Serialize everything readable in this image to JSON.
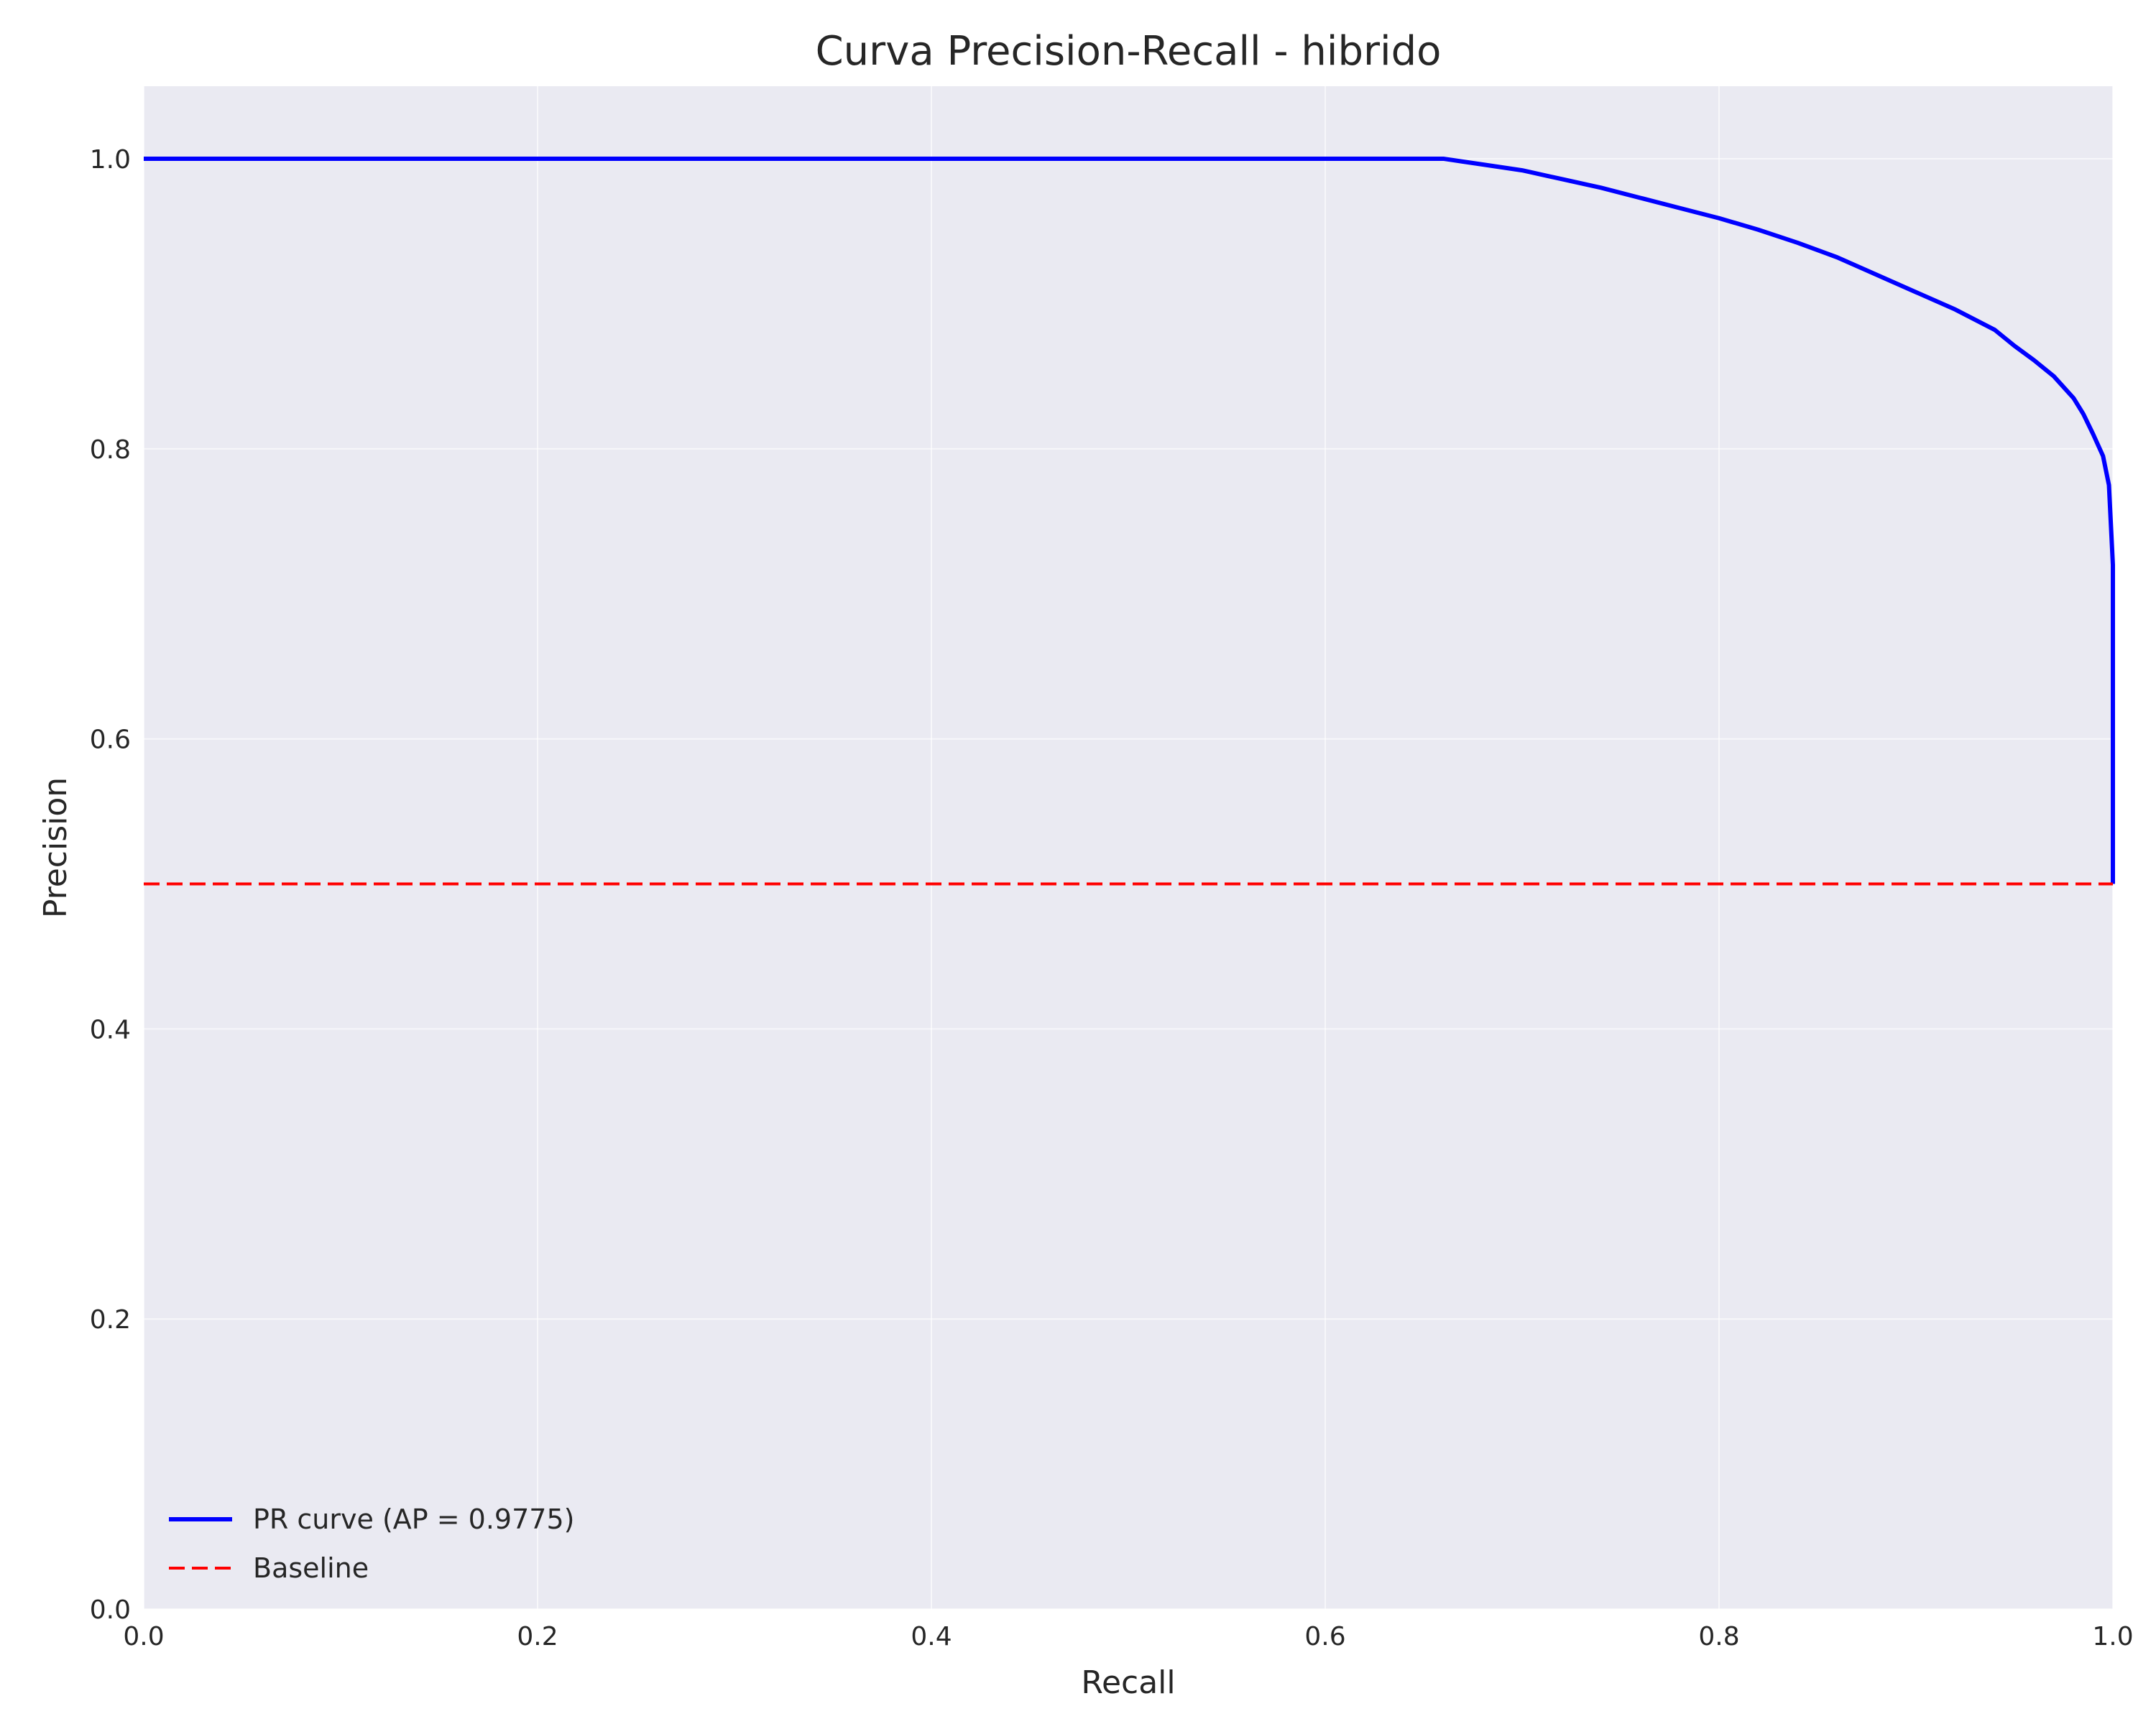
{
  "chart_data": {
    "type": "line",
    "title": "Curva Precision-Recall - hibrido",
    "xlabel": "Recall",
    "ylabel": "Precision",
    "xlim": [
      0,
      1
    ],
    "ylim": [
      0,
      1.05
    ],
    "xticks": [
      0.0,
      0.2,
      0.4,
      0.6,
      0.8,
      1.0
    ],
    "yticks": [
      0.0,
      0.2,
      0.4,
      0.6,
      0.8,
      1.0
    ],
    "xtick_labels": [
      "0.0",
      "0.2",
      "0.4",
      "0.6",
      "0.8",
      "1.0"
    ],
    "ytick_labels": [
      "0.0",
      "0.2",
      "0.4",
      "0.6",
      "0.8",
      "1.0"
    ],
    "grid": true,
    "legend_position": "lower-left",
    "background_color": "#eaeaf2",
    "series": [
      {
        "name": "PR curve (AP = 0.9775)",
        "color": "#0000ff",
        "style": "solid",
        "x": [
          0.0,
          0.1,
          0.2,
          0.3,
          0.4,
          0.5,
          0.6,
          0.66,
          0.68,
          0.7,
          0.72,
          0.74,
          0.76,
          0.78,
          0.8,
          0.82,
          0.84,
          0.86,
          0.88,
          0.9,
          0.92,
          0.94,
          0.95,
          0.96,
          0.97,
          0.98,
          0.985,
          0.99,
          0.995,
          0.998,
          1.0,
          1.0
        ],
        "y": [
          1.0,
          1.0,
          1.0,
          1.0,
          1.0,
          1.0,
          1.0,
          1.0,
          0.996,
          0.992,
          0.986,
          0.98,
          0.973,
          0.966,
          0.959,
          0.951,
          0.942,
          0.932,
          0.92,
          0.908,
          0.896,
          0.882,
          0.871,
          0.861,
          0.85,
          0.835,
          0.824,
          0.81,
          0.795,
          0.775,
          0.72,
          0.5
        ]
      },
      {
        "name": "Baseline",
        "color": "#ff0000",
        "style": "dashed",
        "x": [
          0.0,
          1.0
        ],
        "y": [
          0.5,
          0.5
        ]
      }
    ]
  }
}
